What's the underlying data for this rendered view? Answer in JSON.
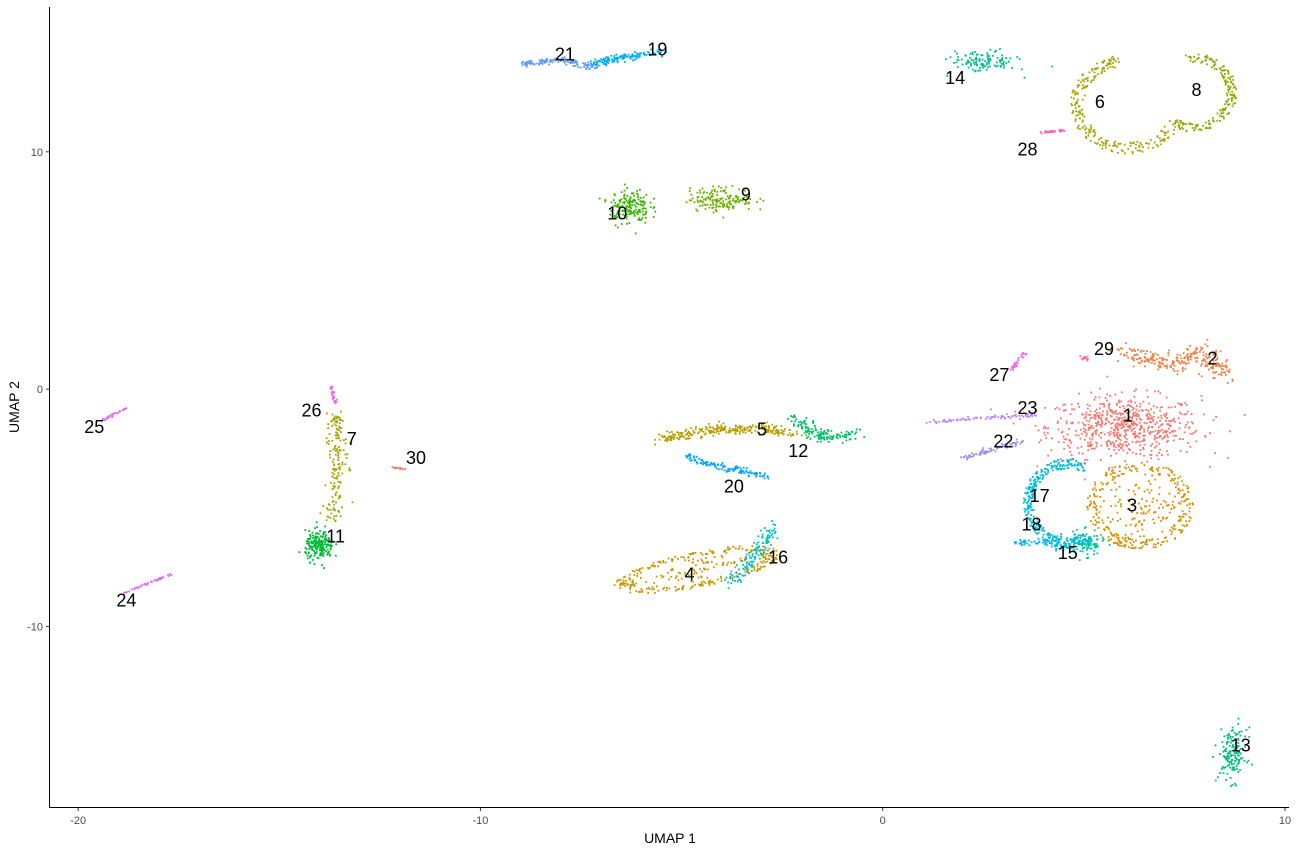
{
  "chart_data": {
    "type": "scatter",
    "title": "",
    "xlabel": "UMAP 1",
    "ylabel": "UMAP 2",
    "xlim": [
      -20.7,
      10.1
    ],
    "ylim": [
      -17.6,
      16.1
    ],
    "x_ticks": [
      -20,
      -10,
      0,
      10
    ],
    "y_ticks": [
      -10,
      0,
      10
    ],
    "x_tick_labels": [
      "-20",
      "-10",
      "0",
      "10"
    ],
    "y_tick_labels": [
      "-10",
      "0",
      "10"
    ],
    "grid": false,
    "legend": "none",
    "clusters": [
      {
        "label": "1",
        "x": 6.0,
        "y": -1.6,
        "color": "#F8766D",
        "shape": "blob",
        "rx": 1.9,
        "ry": 1.3,
        "n": 650
      },
      {
        "label": "2",
        "x": 7.4,
        "y": 0.9,
        "color": "#EE8044",
        "shape": "path",
        "path": [
          [
            5.9,
            1.6
          ],
          [
            7.2,
            1.0
          ],
          [
            8.0,
            1.7
          ],
          [
            8.4,
            0.6
          ]
        ],
        "width": 0.45,
        "n": 260
      },
      {
        "label": "3",
        "x": 6.4,
        "y": -4.9,
        "color": "#D89000",
        "shape": "ring",
        "rx": 1.2,
        "ry": 1.7,
        "n": 380
      },
      {
        "label": "4",
        "x": -4.6,
        "y": -7.6,
        "color": "#C99800",
        "shape": "ring",
        "rx": 2.0,
        "ry": 0.65,
        "rot": 20,
        "n": 330
      },
      {
        "label": "5",
        "x": -3.6,
        "y": -1.9,
        "color": "#B79F00",
        "shape": "path",
        "path": [
          [
            -5.5,
            -2.1
          ],
          [
            -4.2,
            -1.7
          ],
          [
            -2.8,
            -1.7
          ],
          [
            -2.1,
            -1.9
          ]
        ],
        "width": 0.3,
        "n": 260
      },
      {
        "label": "6",
        "x": 6.1,
        "y": 12.0,
        "color": "#A3A500",
        "shape": "arc",
        "rx": 1.3,
        "ry": 1.9,
        "start": 100,
        "end": 340,
        "n": 240
      },
      {
        "label": "7",
        "x": -13.5,
        "y": -3.0,
        "color": "#A3A500",
        "shape": "path",
        "path": [
          [
            -13.6,
            -1.0
          ],
          [
            -13.5,
            -3.2
          ],
          [
            -13.7,
            -5.6
          ]
        ],
        "width": 0.3,
        "n": 160
      },
      {
        "label": "8",
        "x": 7.7,
        "y": 12.5,
        "color": "#8AAB00",
        "shape": "arc",
        "rx": 1.0,
        "ry": 1.5,
        "start": 250,
        "end": 460,
        "n": 170
      },
      {
        "label": "9",
        "x": -4.0,
        "y": 8.0,
        "color": "#6BB100",
        "shape": "blob",
        "rx": 0.8,
        "ry": 0.5,
        "n": 160
      },
      {
        "label": "10",
        "x": -6.3,
        "y": 7.7,
        "color": "#39B600",
        "shape": "blob",
        "rx": 0.5,
        "ry": 0.75,
        "n": 170
      },
      {
        "label": "11",
        "x": -14.0,
        "y": -6.6,
        "color": "#00BA38",
        "shape": "blob",
        "rx": 0.35,
        "ry": 0.6,
        "n": 200
      },
      {
        "label": "12",
        "x": -1.6,
        "y": -2.1,
        "color": "#00BE67",
        "shape": "path",
        "path": [
          [
            -2.2,
            -1.2
          ],
          [
            -1.6,
            -2.0
          ],
          [
            -0.7,
            -1.9
          ]
        ],
        "width": 0.3,
        "n": 140
      },
      {
        "label": "13",
        "x": 8.7,
        "y": -15.4,
        "color": "#00BF7D",
        "shape": "blob",
        "rx": 0.35,
        "ry": 1.1,
        "n": 150
      },
      {
        "label": "14",
        "x": 2.5,
        "y": 13.8,
        "color": "#00C08B",
        "shape": "blob",
        "rx": 0.8,
        "ry": 0.45,
        "n": 120
      },
      {
        "label": "15",
        "x": 5.0,
        "y": -6.5,
        "color": "#00C1AA",
        "shape": "blob",
        "rx": 0.5,
        "ry": 0.5,
        "n": 130
      },
      {
        "label": "16",
        "x": -3.4,
        "y": -7.2,
        "color": "#00BFC4",
        "shape": "path",
        "path": [
          [
            -3.8,
            -8.2
          ],
          [
            -3.3,
            -7.3
          ],
          [
            -2.7,
            -5.8
          ]
        ],
        "width": 0.3,
        "n": 120
      },
      {
        "label": "17",
        "x": 4.6,
        "y": -4.8,
        "color": "#00BCD8",
        "shape": "arc",
        "rx": 1.0,
        "ry": 1.7,
        "start": 60,
        "end": 300,
        "n": 300
      },
      {
        "label": "18",
        "x": 4.0,
        "y": -6.4,
        "color": "#00B4EF",
        "shape": "path",
        "path": [
          [
            3.3,
            -6.5
          ],
          [
            4.0,
            -6.4
          ],
          [
            4.6,
            -6.7
          ]
        ],
        "width": 0.2,
        "n": 60
      },
      {
        "label": "19",
        "x": -6.5,
        "y": 14.0,
        "color": "#00ABFD",
        "shape": "path",
        "path": [
          [
            -7.2,
            13.7
          ],
          [
            -6.4,
            14.0
          ],
          [
            -5.5,
            14.2
          ]
        ],
        "width": 0.2,
        "n": 140
      },
      {
        "label": "20",
        "x": -4.0,
        "y": -3.3,
        "color": "#00A5FF",
        "shape": "path",
        "path": [
          [
            -5.0,
            -2.8
          ],
          [
            -4.0,
            -3.3
          ],
          [
            -2.9,
            -3.7
          ]
        ],
        "width": 0.18,
        "n": 120
      },
      {
        "label": "21",
        "x": -8.3,
        "y": 13.8,
        "color": "#619CFF",
        "shape": "path",
        "path": [
          [
            -9.0,
            13.7
          ],
          [
            -8.0,
            13.9
          ],
          [
            -7.1,
            13.5
          ]
        ],
        "width": 0.15,
        "n": 130
      },
      {
        "label": "22",
        "x": 2.8,
        "y": -2.5,
        "color": "#9590FF",
        "shape": "path",
        "path": [
          [
            2.0,
            -2.9
          ],
          [
            2.8,
            -2.5
          ],
          [
            3.5,
            -2.2
          ]
        ],
        "width": 0.12,
        "n": 70
      },
      {
        "label": "23",
        "x": 2.4,
        "y": -1.2,
        "color": "#B983FF",
        "shape": "path",
        "path": [
          [
            1.1,
            -1.4
          ],
          [
            2.4,
            -1.2
          ],
          [
            3.8,
            -1.1
          ]
        ],
        "width": 0.1,
        "n": 80
      },
      {
        "label": "24",
        "x": -18.2,
        "y": -8.3,
        "color": "#E76BF3",
        "shape": "path",
        "path": [
          [
            -18.9,
            -8.6
          ],
          [
            -17.7,
            -7.8
          ]
        ],
        "width": 0.06,
        "n": 50
      },
      {
        "label": "25",
        "x": -19.0,
        "y": -1.0,
        "color": "#E76BF3",
        "shape": "path",
        "path": [
          [
            -19.4,
            -1.3
          ],
          [
            -18.8,
            -0.8
          ]
        ],
        "width": 0.05,
        "n": 35
      },
      {
        "label": "26",
        "x": -13.7,
        "y": -0.2,
        "color": "#F063E6",
        "shape": "path",
        "path": [
          [
            -13.7,
            0.1
          ],
          [
            -13.6,
            -0.6
          ]
        ],
        "width": 0.08,
        "n": 30
      },
      {
        "label": "27",
        "x": 3.4,
        "y": 1.2,
        "color": "#FA62DB",
        "shape": "path",
        "path": [
          [
            3.2,
            0.8
          ],
          [
            3.5,
            1.5
          ]
        ],
        "width": 0.08,
        "n": 30
      },
      {
        "label": "28",
        "x": 4.2,
        "y": 10.8,
        "color": "#FF62BC",
        "shape": "path",
        "path": [
          [
            3.9,
            10.8
          ],
          [
            4.5,
            10.9
          ]
        ],
        "width": 0.06,
        "n": 30
      },
      {
        "label": "29",
        "x": 5.0,
        "y": 1.3,
        "color": "#FF65AE",
        "shape": "blob",
        "rx": 0.1,
        "ry": 0.12,
        "n": 15
      },
      {
        "label": "30",
        "x": -12.0,
        "y": -3.3,
        "color": "#F8766D",
        "shape": "path",
        "path": [
          [
            -12.2,
            -3.3
          ],
          [
            -11.9,
            -3.35
          ]
        ],
        "width": 0.04,
        "n": 12
      }
    ],
    "labels": [
      {
        "text": "1",
        "x": 6.1,
        "y": -1.1
      },
      {
        "text": "2",
        "x": 8.2,
        "y": 1.3
      },
      {
        "text": "3",
        "x": 6.2,
        "y": -4.9
      },
      {
        "text": "4",
        "x": -4.8,
        "y": -7.8
      },
      {
        "text": "5",
        "x": -3.0,
        "y": -1.7
      },
      {
        "text": "6",
        "x": 5.4,
        "y": 12.1
      },
      {
        "text": "7",
        "x": -13.2,
        "y": -2.1
      },
      {
        "text": "8",
        "x": 7.8,
        "y": 12.6
      },
      {
        "text": "9",
        "x": -3.4,
        "y": 8.2
      },
      {
        "text": "10",
        "x": -6.6,
        "y": 7.4
      },
      {
        "text": "11",
        "x": -13.6,
        "y": -6.2
      },
      {
        "text": "12",
        "x": -2.1,
        "y": -2.6
      },
      {
        "text": "13",
        "x": 8.9,
        "y": -15.0
      },
      {
        "text": "14",
        "x": 1.8,
        "y": 13.1
      },
      {
        "text": "15",
        "x": 4.6,
        "y": -6.9
      },
      {
        "text": "16",
        "x": -2.6,
        "y": -7.1
      },
      {
        "text": "17",
        "x": 3.9,
        "y": -4.5
      },
      {
        "text": "18",
        "x": 3.7,
        "y": -5.7
      },
      {
        "text": "19",
        "x": -5.6,
        "y": 14.3
      },
      {
        "text": "20",
        "x": -3.7,
        "y": -4.1
      },
      {
        "text": "21",
        "x": -7.9,
        "y": 14.1
      },
      {
        "text": "22",
        "x": 3.0,
        "y": -2.2
      },
      {
        "text": "23",
        "x": 3.6,
        "y": -0.8
      },
      {
        "text": "24",
        "x": -18.8,
        "y": -8.9
      },
      {
        "text": "25",
        "x": -19.6,
        "y": -1.6
      },
      {
        "text": "26",
        "x": -14.2,
        "y": -0.9
      },
      {
        "text": "27",
        "x": 2.9,
        "y": 0.6
      },
      {
        "text": "28",
        "x": 3.6,
        "y": 10.1
      },
      {
        "text": "29",
        "x": 5.5,
        "y": 1.7
      },
      {
        "text": "30",
        "x": -11.6,
        "y": -2.9
      }
    ]
  }
}
